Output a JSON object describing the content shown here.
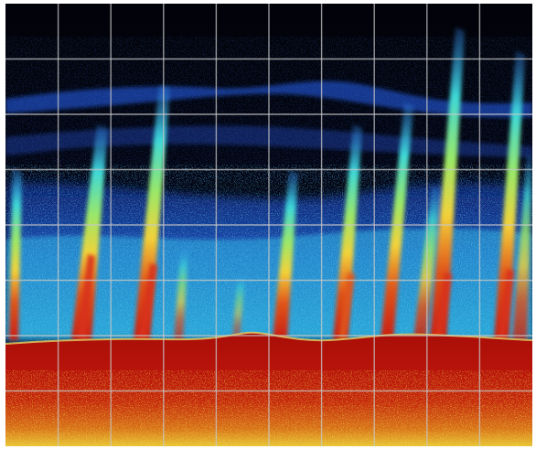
{
  "image": {
    "kind": "echogram",
    "colors": {
      "water": "#02030a",
      "scatter_deep_blue": "#1c3fb0",
      "scatter_blue": "#2f7fe6",
      "scatter_cyan": "#36d6e8",
      "plume_green": "#8ee86a",
      "plume_yellow": "#f2e23a",
      "plume_orange": "#f08a1c",
      "plume_red": "#c81c10",
      "seabed_red": "#b2120a",
      "seabed_dark": "#8a0c06",
      "sediment_yellow": "#f0d040",
      "grid": "#c8c8c8",
      "frame": "#ffffff"
    },
    "grid": {
      "columns": 10,
      "rows": 8,
      "visible": true
    },
    "plume_count": 12
  }
}
